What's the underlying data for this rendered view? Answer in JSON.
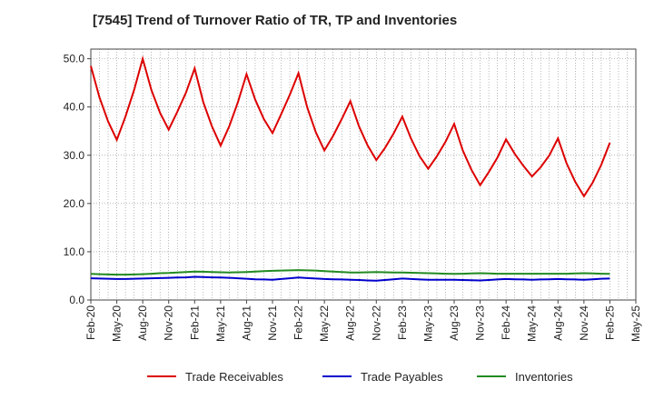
{
  "chart_data": {
    "type": "line",
    "title": "[7545]  Trend of Turnover Ratio of TR, TP and Inventories",
    "xlabel": "",
    "ylabel": "",
    "ylim": [
      0,
      52
    ],
    "yticks": [
      "0.0",
      "10.0",
      "20.0",
      "30.0",
      "40.0",
      "50.0"
    ],
    "ytick_values": [
      0,
      10,
      20,
      30,
      40,
      50
    ],
    "xtick_labels": [
      "Feb-20",
      "May-20",
      "Aug-20",
      "Nov-20",
      "Feb-21",
      "May-21",
      "Aug-21",
      "Nov-21",
      "Feb-22",
      "May-22",
      "Aug-22",
      "Nov-22",
      "Feb-23",
      "May-23",
      "Aug-23",
      "Nov-23",
      "Feb-24",
      "May-24",
      "Aug-24",
      "Nov-24",
      "Feb-25",
      "May-25"
    ],
    "x": [
      "Feb-20",
      "Mar-20",
      "Apr-20",
      "May-20",
      "Jun-20",
      "Jul-20",
      "Aug-20",
      "Sep-20",
      "Oct-20",
      "Nov-20",
      "Dec-20",
      "Jan-21",
      "Feb-21",
      "Mar-21",
      "Apr-21",
      "May-21",
      "Jun-21",
      "Jul-21",
      "Aug-21",
      "Sep-21",
      "Oct-21",
      "Nov-21",
      "Dec-21",
      "Jan-22",
      "Feb-22",
      "Mar-22",
      "Apr-22",
      "May-22",
      "Jun-22",
      "Jul-22",
      "Aug-22",
      "Sep-22",
      "Oct-22",
      "Nov-22",
      "Dec-22",
      "Jan-23",
      "Feb-23",
      "Mar-23",
      "Apr-23",
      "May-23",
      "Jun-23",
      "Jul-23",
      "Aug-23",
      "Sep-23",
      "Oct-23",
      "Nov-23",
      "Dec-23",
      "Jan-24",
      "Feb-24",
      "Mar-24",
      "Apr-24",
      "May-24",
      "Jun-24",
      "Jul-24",
      "Aug-24",
      "Sep-24",
      "Oct-24",
      "Nov-24",
      "Dec-24",
      "Jan-25",
      "Feb-25"
    ],
    "grid": true,
    "legend_position": "bottom",
    "series": [
      {
        "name": "Trade Receivables",
        "color": "#dd0000",
        "values": [
          48.5,
          42.0,
          37.0,
          33.2,
          38.0,
          43.5,
          50.0,
          43.5,
          38.8,
          35.3,
          39.0,
          43.0,
          48.0,
          41.0,
          36.0,
          32.0,
          36.0,
          41.0,
          46.8,
          41.5,
          37.5,
          34.6,
          38.5,
          42.5,
          47.0,
          40.0,
          34.8,
          31.0,
          34.0,
          37.5,
          41.2,
          36.0,
          32.0,
          29.0,
          31.5,
          34.5,
          38.0,
          33.5,
          29.8,
          27.2,
          29.8,
          32.8,
          36.5,
          31.0,
          27.0,
          23.8,
          26.5,
          29.5,
          33.3,
          30.3,
          27.8,
          25.6,
          27.5,
          30.0,
          33.5,
          28.3,
          24.5,
          21.5,
          24.3,
          28.0,
          32.6
        ]
      },
      {
        "name": "Trade Payables",
        "color": "#0000cc",
        "values": [
          4.5,
          4.45,
          4.4,
          4.35,
          4.35,
          4.4,
          4.45,
          4.5,
          4.55,
          4.6,
          4.65,
          4.7,
          4.8,
          4.75,
          4.7,
          4.65,
          4.6,
          4.5,
          4.4,
          4.3,
          4.25,
          4.2,
          4.35,
          4.5,
          4.65,
          4.55,
          4.45,
          4.35,
          4.3,
          4.25,
          4.2,
          4.15,
          4.05,
          4.0,
          4.15,
          4.3,
          4.45,
          4.35,
          4.25,
          4.2,
          4.2,
          4.2,
          4.2,
          4.15,
          4.1,
          4.05,
          4.15,
          4.25,
          4.35,
          4.3,
          4.25,
          4.2,
          4.25,
          4.3,
          4.35,
          4.3,
          4.25,
          4.2,
          4.3,
          4.4,
          4.45
        ]
      },
      {
        "name": "Inventories",
        "color": "#228b22",
        "values": [
          5.4,
          5.35,
          5.3,
          5.25,
          5.25,
          5.3,
          5.35,
          5.45,
          5.55,
          5.6,
          5.7,
          5.8,
          5.9,
          5.85,
          5.8,
          5.75,
          5.7,
          5.75,
          5.8,
          5.9,
          6.0,
          6.05,
          6.1,
          6.15,
          6.2,
          6.15,
          6.1,
          6.0,
          5.9,
          5.8,
          5.7,
          5.7,
          5.75,
          5.8,
          5.75,
          5.7,
          5.7,
          5.65,
          5.6,
          5.55,
          5.5,
          5.45,
          5.4,
          5.45,
          5.5,
          5.55,
          5.5,
          5.45,
          5.45,
          5.45,
          5.45,
          5.45,
          5.45,
          5.45,
          5.45,
          5.45,
          5.5,
          5.55,
          5.5,
          5.45,
          5.4
        ]
      }
    ]
  }
}
